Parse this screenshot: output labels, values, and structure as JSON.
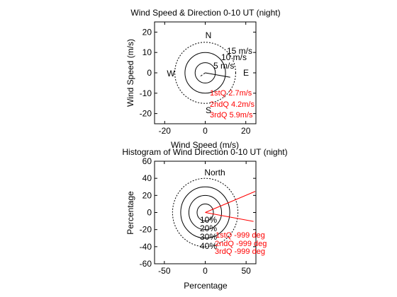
{
  "chart_data": [
    {
      "type": "polar-scatter",
      "title": "Wind Speed & Direction 0-10 UT (night)",
      "xlabel": "Wind Speed (m/s)",
      "ylabel": "Wind Speed (m/s)",
      "xlim": [
        -25,
        25
      ],
      "ylim": [
        -25,
        25
      ],
      "xticks": [
        -20,
        0,
        20
      ],
      "yticks": [
        20,
        10,
        0,
        -10,
        -20
      ],
      "compass": {
        "N": "N",
        "S": "S",
        "E": "E",
        "W": "W"
      },
      "rings": [
        {
          "radius": 5,
          "style": "solid",
          "label": "5 m/s"
        },
        {
          "radius": 10,
          "style": "solid",
          "label": "10 m/s"
        },
        {
          "radius": 15,
          "style": "dashed",
          "label": "15 m/s"
        }
      ],
      "quartile_lines": [
        {
          "angle_deg": 100,
          "speed": 12.5,
          "color": "#000000"
        },
        {
          "angle_deg": 235,
          "speed": 3.5,
          "color": "#000000",
          "dash": true
        }
      ],
      "annotations": [
        {
          "text": "1stQ 2.7m/s",
          "color": "#ff0000"
        },
        {
          "text": "2ndQ 4.2m/s",
          "color": "#ff0000"
        },
        {
          "text": "3rdQ 5.9m/s",
          "color": "#ff0000"
        }
      ]
    },
    {
      "type": "polar-histogram",
      "title": "Histogram of Wind Direction 0-10 UT (night)",
      "xlabel": "Percentage",
      "ylabel": "Percentage",
      "xlim": [
        -62,
        62
      ],
      "ylim": [
        -60,
        60
      ],
      "xticks": [
        -50,
        0,
        50
      ],
      "yticks": [
        60,
        40,
        20,
        0,
        -20,
        -40,
        -60
      ],
      "compass": {
        "N": "North"
      },
      "rings": [
        {
          "radius": 10,
          "style": "solid",
          "label": "10%"
        },
        {
          "radius": 20,
          "style": "solid",
          "label": "20%"
        },
        {
          "radius": 30,
          "style": "solid",
          "label": "30%"
        },
        {
          "radius": 40,
          "style": "dashed",
          "label": "40%"
        }
      ],
      "quartile_lines": [
        {
          "angle_deg": 68,
          "length": 66,
          "color": "#ff0000"
        },
        {
          "angle_deg": 100,
          "length": 60,
          "color": "#ff0000"
        }
      ],
      "annotations": [
        {
          "text": "1stQ -999 deg",
          "color": "#ff0000"
        },
        {
          "text": "2ndQ -999 deg",
          "color": "#ff0000"
        },
        {
          "text": "3rdQ -999 deg",
          "color": "#ff0000"
        }
      ]
    }
  ]
}
